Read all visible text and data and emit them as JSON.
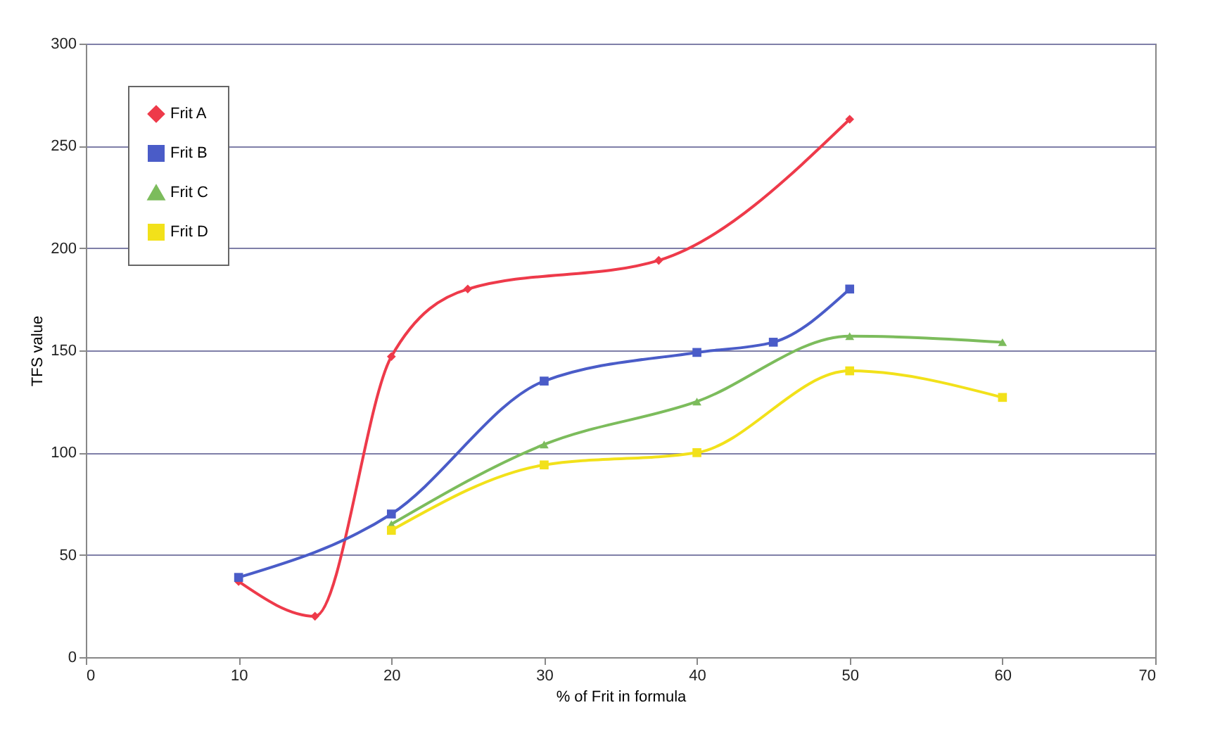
{
  "chart_data": {
    "type": "line",
    "xlabel": "% of Frit in formula",
    "ylabel": "TFS value",
    "xlim": [
      0,
      70
    ],
    "xticks": [
      0,
      10,
      20,
      30,
      40,
      50,
      60,
      70
    ],
    "ylim": [
      0,
      300
    ],
    "yticks": [
      0,
      50,
      100,
      150,
      200,
      250,
      300
    ],
    "grid": "y",
    "legend": "top left",
    "line_style": "solid",
    "series": [
      {
        "name": "Frit A",
        "color": "#ee3a4a",
        "marker": "diamond",
        "x": [
          10,
          15,
          20,
          25,
          37.5,
          50
        ],
        "values": [
          37,
          20,
          147,
          180,
          194,
          263
        ]
      },
      {
        "name": "Frit B",
        "color": "#4a5cc8",
        "marker": "square",
        "x": [
          10,
          20,
          30,
          40,
          45,
          50
        ],
        "values": [
          39,
          70,
          135,
          149,
          154,
          180
        ]
      },
      {
        "name": "Frit C",
        "color": "#7cbc5c",
        "marker": "triangle",
        "x": [
          20,
          30,
          40,
          50,
          60
        ],
        "values": [
          65,
          104,
          125,
          157,
          154
        ]
      },
      {
        "name": "Frit D",
        "color": "#f2e11a",
        "marker": "square",
        "x": [
          20,
          30,
          40,
          50,
          60
        ],
        "values": [
          62,
          94,
          100,
          140,
          127
        ]
      }
    ]
  }
}
